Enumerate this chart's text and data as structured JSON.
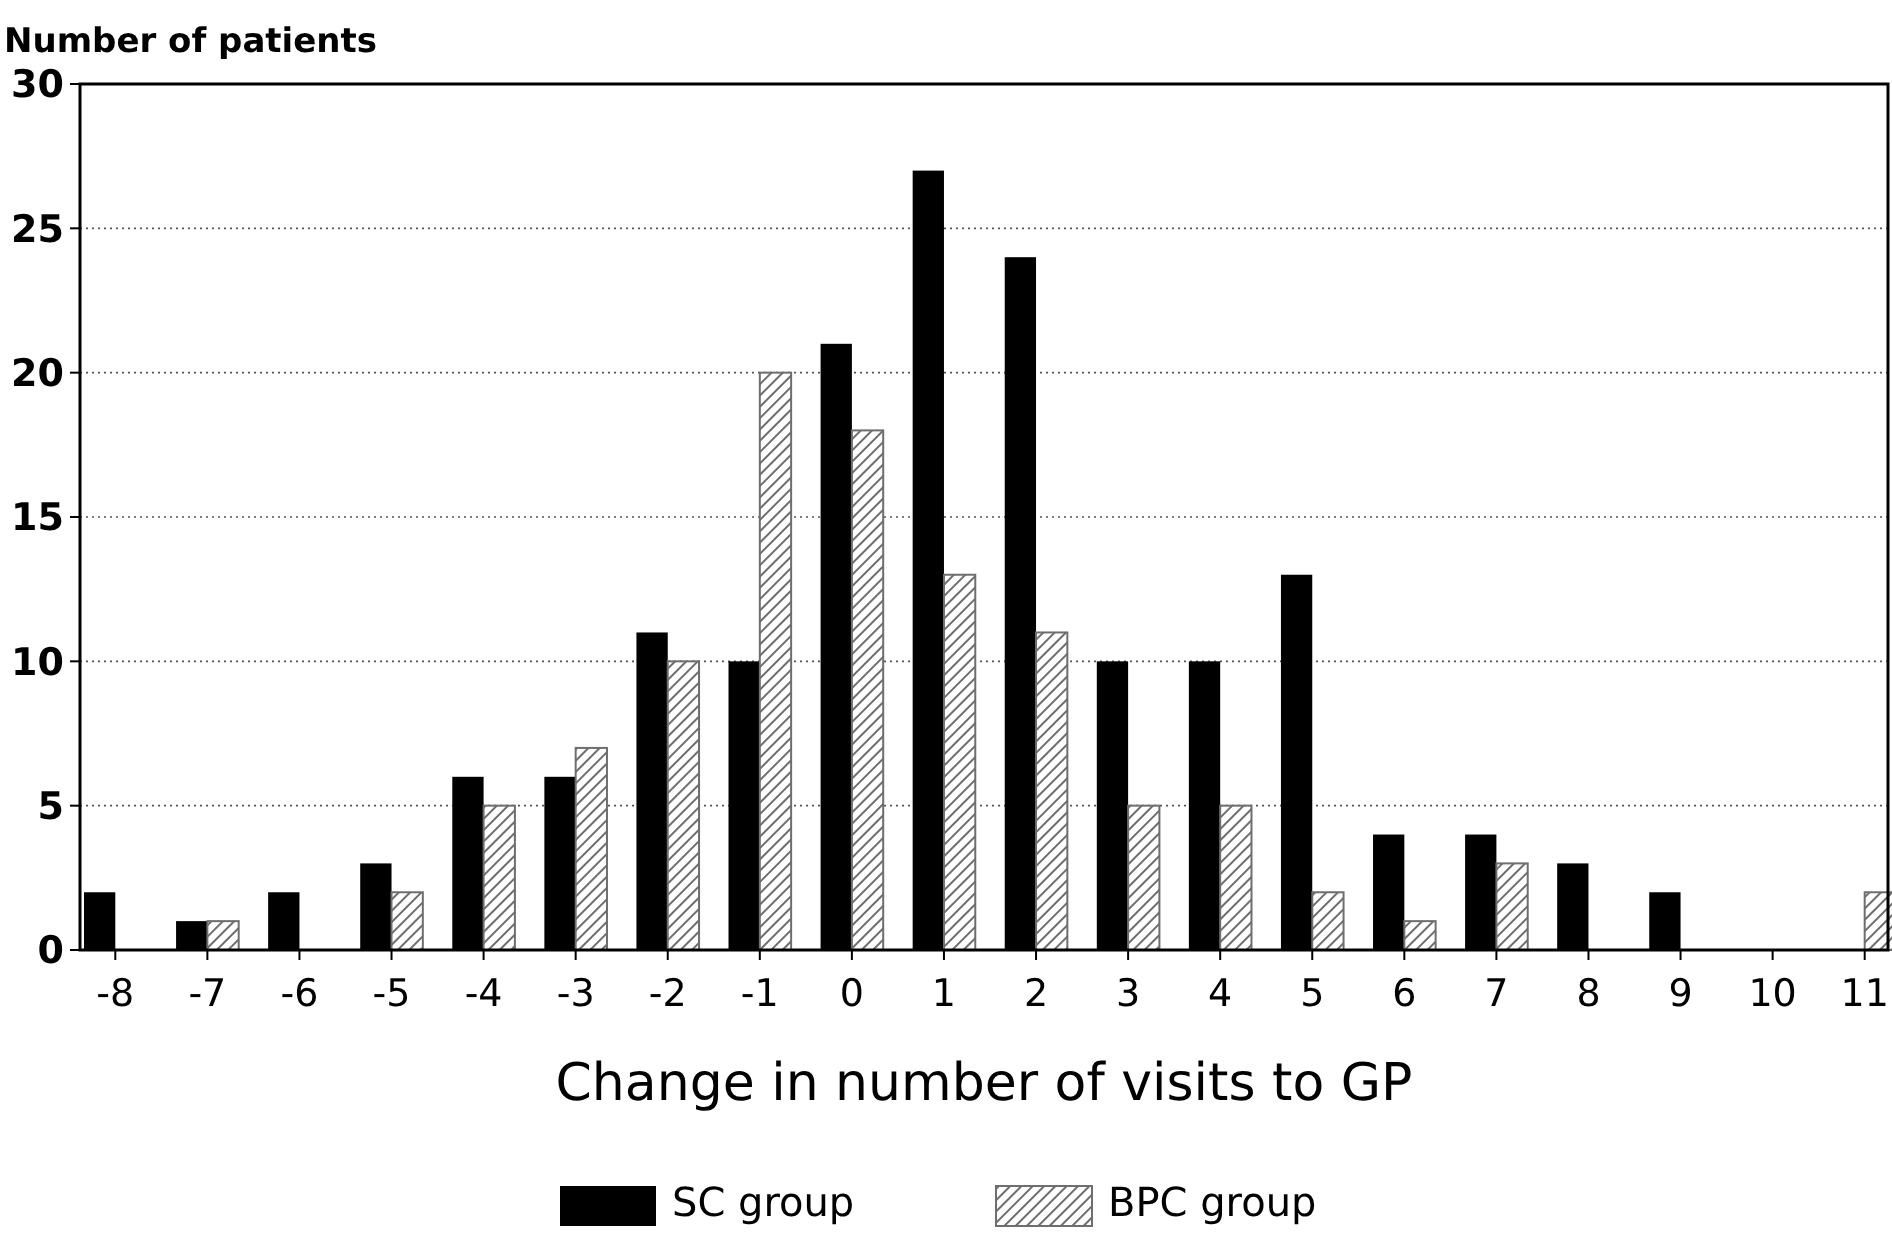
{
  "chart_data": {
    "type": "bar",
    "ylabel": "Number of patients",
    "xlabel": "Change in number of visits to GP",
    "categories": [
      "-8",
      "-7",
      "-6",
      "-5",
      "-4",
      "-3",
      "-2",
      "-1",
      "0",
      "1",
      "2",
      "3",
      "4",
      "5",
      "6",
      "7",
      "8",
      "9",
      "10",
      "11"
    ],
    "series": [
      {
        "name": "SC group",
        "color": "#000000",
        "values": [
          2,
          1,
          2,
          3,
          6,
          6,
          11,
          10,
          21,
          27,
          24,
          10,
          10,
          13,
          4,
          4,
          3,
          2,
          0,
          0
        ]
      },
      {
        "name": "BPC group",
        "color": "#6e6e6e",
        "values": [
          0,
          1,
          0,
          2,
          5,
          7,
          10,
          20,
          18,
          13,
          11,
          5,
          5,
          2,
          1,
          3,
          0,
          0,
          0,
          2
        ]
      }
    ],
    "ylim": [
      0,
      30
    ],
    "yticks": [
      0,
      5,
      10,
      15,
      20,
      25,
      30
    ],
    "grid": "y",
    "legend": "bottom"
  }
}
